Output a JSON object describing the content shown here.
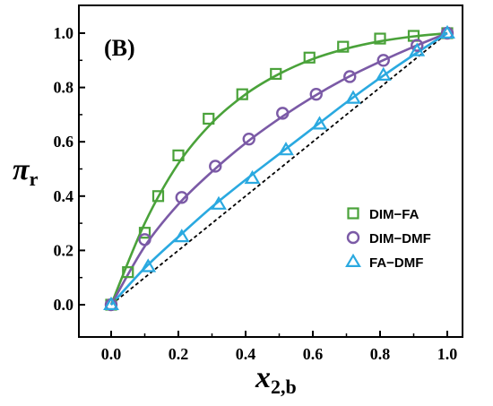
{
  "chart_data": {
    "type": "scatter",
    "panel_label": "(B)",
    "xlabel": {
      "main": "x",
      "sub": "2,b"
    },
    "ylabel": {
      "main": "π",
      "sub": "r"
    },
    "xlim": [
      -0.1,
      1.05
    ],
    "ylim": [
      -0.1,
      1.05
    ],
    "x_ticks": [
      0.0,
      0.2,
      0.4,
      0.6,
      0.8,
      1.0
    ],
    "x_tick_labels": [
      "0.0",
      "0.2",
      "0.4",
      "0.6",
      "0.8",
      "1.0"
    ],
    "y_ticks": [
      0.0,
      0.2,
      0.4,
      0.6,
      0.8,
      1.0
    ],
    "y_tick_labels": [
      "0.0",
      "0.2",
      "0.4",
      "0.6",
      "0.8",
      "1.0"
    ],
    "grid": false,
    "legend_position": "bottom-right",
    "diagonal_reference": {
      "style": "dashed",
      "color": "#000000",
      "from": [
        0,
        0
      ],
      "to": [
        1,
        1
      ]
    },
    "series": [
      {
        "name": "DIM−FA",
        "marker": "square",
        "color": "#4aa23a",
        "x": [
          0.0,
          0.05,
          0.1,
          0.14,
          0.2,
          0.29,
          0.39,
          0.49,
          0.59,
          0.69,
          0.8,
          0.9,
          1.0
        ],
        "y": [
          0.0,
          0.12,
          0.265,
          0.4,
          0.55,
          0.685,
          0.775,
          0.85,
          0.91,
          0.95,
          0.98,
          0.99,
          1.0
        ],
        "fit": [
          [
            0.0,
            0.0
          ],
          [
            0.1,
            0.3
          ],
          [
            0.2,
            0.52
          ],
          [
            0.3,
            0.67
          ],
          [
            0.4,
            0.775
          ],
          [
            0.5,
            0.85
          ],
          [
            0.6,
            0.905
          ],
          [
            0.7,
            0.943
          ],
          [
            0.8,
            0.97
          ],
          [
            0.9,
            0.988
          ],
          [
            1.0,
            1.0
          ]
        ]
      },
      {
        "name": "DIM−DMF",
        "marker": "circle",
        "color": "#7b5aa6",
        "x": [
          0.0,
          0.1,
          0.21,
          0.31,
          0.41,
          0.51,
          0.61,
          0.71,
          0.81,
          0.91,
          1.0
        ],
        "y": [
          0.0,
          0.24,
          0.395,
          0.51,
          0.61,
          0.705,
          0.775,
          0.84,
          0.9,
          0.955,
          1.0
        ],
        "fit": [
          [
            0.0,
            0.0
          ],
          [
            0.1,
            0.215
          ],
          [
            0.2,
            0.37
          ],
          [
            0.3,
            0.49
          ],
          [
            0.4,
            0.595
          ],
          [
            0.5,
            0.685
          ],
          [
            0.6,
            0.765
          ],
          [
            0.7,
            0.835
          ],
          [
            0.8,
            0.895
          ],
          [
            0.9,
            0.95
          ],
          [
            1.0,
            1.0
          ]
        ]
      },
      {
        "name": "FA−DMF",
        "marker": "triangle",
        "color": "#2aa9e0",
        "x": [
          0.0,
          0.11,
          0.21,
          0.32,
          0.42,
          0.52,
          0.62,
          0.72,
          0.81,
          0.91,
          1.0
        ],
        "y": [
          0.0,
          0.14,
          0.25,
          0.37,
          0.465,
          0.57,
          0.665,
          0.76,
          0.845,
          0.935,
          1.0
        ],
        "fit": [
          [
            0.0,
            0.0
          ],
          [
            0.1,
            0.135
          ],
          [
            0.2,
            0.25
          ],
          [
            0.3,
            0.36
          ],
          [
            0.4,
            0.46
          ],
          [
            0.5,
            0.555
          ],
          [
            0.6,
            0.65
          ],
          [
            0.7,
            0.745
          ],
          [
            0.8,
            0.835
          ],
          [
            0.9,
            0.92
          ],
          [
            1.0,
            1.0
          ]
        ]
      }
    ]
  }
}
